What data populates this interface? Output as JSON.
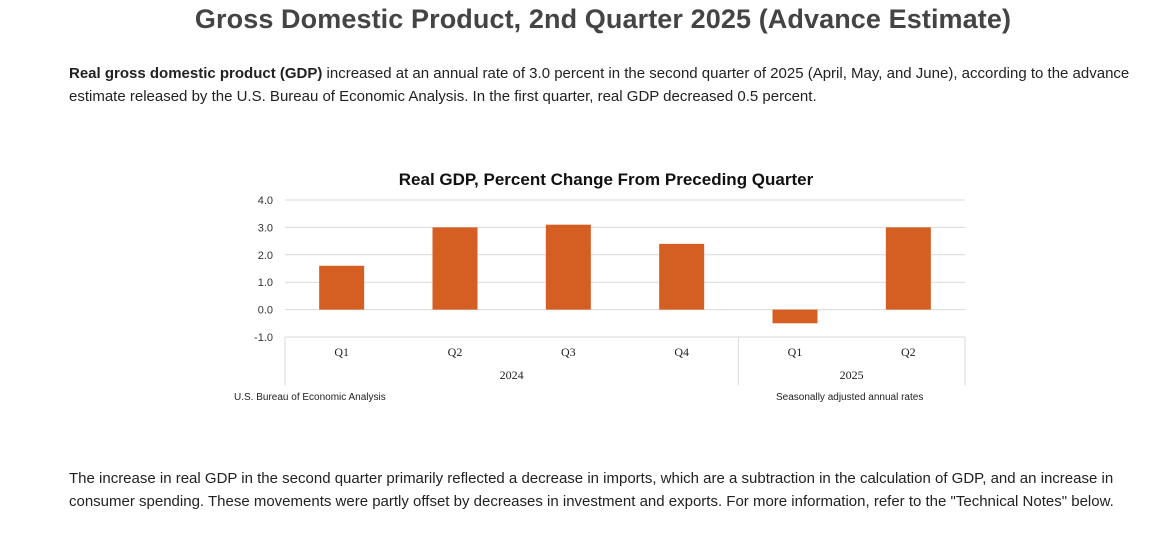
{
  "page": {
    "title": "Gross Domestic Product, 2nd Quarter 2025 (Advance Estimate)",
    "intro_bold": "Real gross domestic product (GDP)",
    "intro_rest": " increased at an annual rate of 3.0 percent in the second quarter of 2025 (April, May, and June), according to the advance estimate released by the U.S. Bureau of Economic Analysis. In the first quarter, real GDP decreased 0.5 percent.",
    "body_text": "The increase in real GDP in the second quarter primarily reflected a decrease in imports, which are a subtraction in the calculation of GDP, and an increase in consumer spending. These movements were partly offset by decreases in investment and exports. For more information, refer to the \"Technical Notes\" below."
  },
  "chart_data": {
    "type": "bar",
    "title": "Real GDP, Percent Change From Preceding Quarter",
    "categories": [
      "Q1",
      "Q2",
      "Q3",
      "Q4",
      "Q1",
      "Q2"
    ],
    "groups": [
      {
        "label": "2024",
        "categories": [
          "Q1",
          "Q2",
          "Q3",
          "Q4"
        ]
      },
      {
        "label": "2025",
        "categories": [
          "Q1",
          "Q2"
        ]
      }
    ],
    "values": [
      1.6,
      3.0,
      3.1,
      2.4,
      -0.5,
      3.0
    ],
    "ylim": [
      -1.0,
      4.0
    ],
    "yticks": [
      "4.0",
      "3.0",
      "2.0",
      "1.0",
      "0.0",
      "-1.0"
    ],
    "grid": true,
    "bar_color": "#d55e23",
    "source": "U.S. Bureau of Economic Analysis",
    "note": "Seasonally adjusted annual rates"
  }
}
